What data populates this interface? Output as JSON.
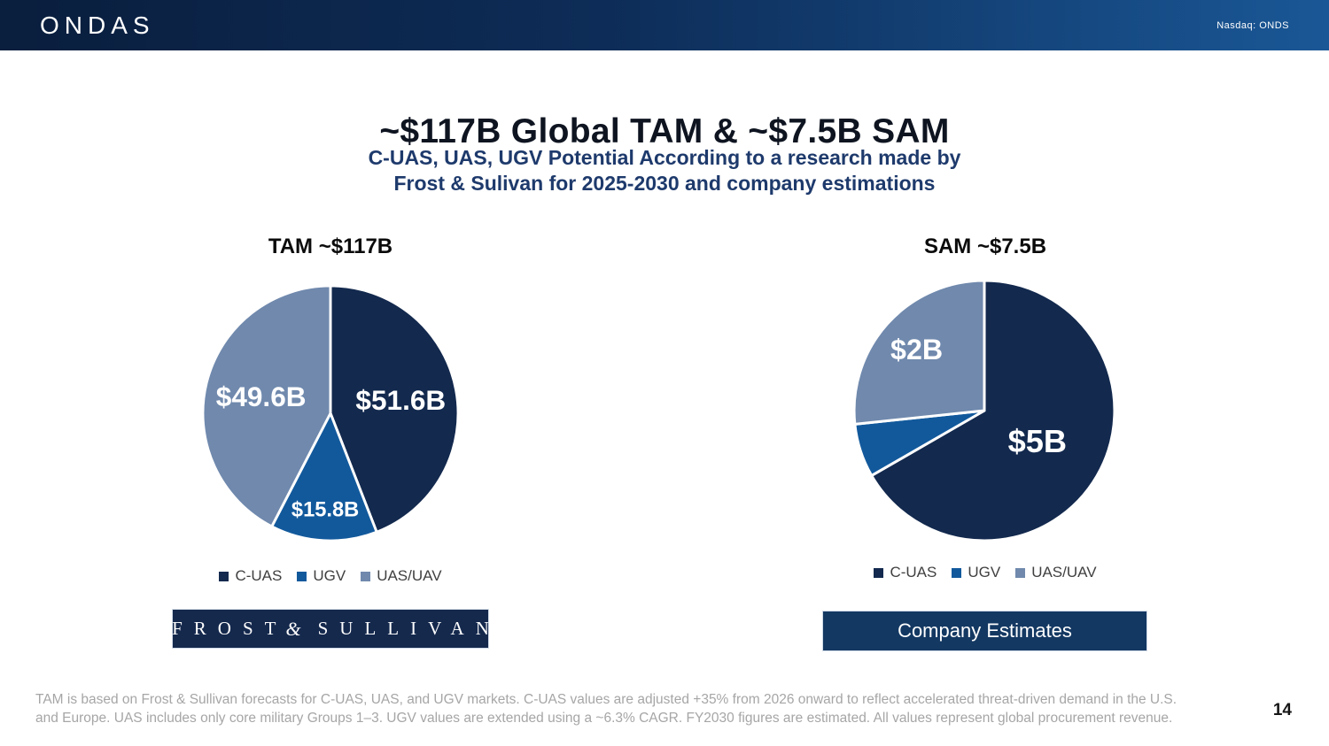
{
  "header": {
    "logo_text": "ONDAS",
    "ticker": "Nasdaq: ONDS"
  },
  "title": "~$117B Global TAM & ~$7.5B SAM",
  "subtitle": {
    "line1": "C-UAS, UAS, UGV Potential According to a research made by",
    "line2": "Frost & Sulivan for 2025-2030 and company estimations"
  },
  "chart_data": [
    {
      "type": "pie",
      "title": "TAM ~$117B",
      "unit": "USD billions",
      "categories": [
        "C-UAS",
        "UGV",
        "UAS/UAV"
      ],
      "values": [
        51.6,
        15.8,
        49.6
      ],
      "total": 117,
      "slice_labels": [
        "$51.6B",
        "$15.8B",
        "$49.6B"
      ],
      "colors": [
        "#13294e",
        "#12599c",
        "#7089ad"
      ],
      "start_angle_deg": 0,
      "clockwise": true,
      "legend_position": "bottom",
      "label_radius_frac": [
        0.56,
        0.76,
        0.56
      ],
      "label_font_px": [
        32,
        24,
        32
      ]
    },
    {
      "type": "pie",
      "title": "SAM ~$7.5B",
      "unit": "USD billions",
      "categories": [
        "C-UAS",
        "UGV",
        "UAS/UAV"
      ],
      "values": [
        5,
        0.5,
        2
      ],
      "total": 7.5,
      "slice_labels": [
        "$5B",
        "",
        "$2B"
      ],
      "colors": [
        "#13294e",
        "#12599c",
        "#7089ad"
      ],
      "start_angle_deg": 0,
      "clockwise": true,
      "legend_position": "bottom",
      "label_radius_frac": [
        0.47,
        0,
        0.7
      ],
      "label_font_px": [
        36,
        0,
        32
      ]
    }
  ],
  "sources": {
    "frost": {
      "word1": "FROST",
      "amp": "&",
      "word2": "SULLIVAN"
    },
    "company": "Company Estimates"
  },
  "footnote": {
    "line1": "TAM is based on Frost & Sullivan forecasts for C-UAS, UAS, and UGV markets. C-UAS values are adjusted +35% from 2026 onward to reflect accelerated threat-driven demand in the U.S.",
    "line2": "and Europe. UAS includes only core military Groups 1–3. UGV values are extended using a ~6.3% CAGR. FY2030 figures are estimated. All values represent global procurement revenue."
  },
  "page_number": "14",
  "colors": {
    "header_gradient_start": "#0a1e3d",
    "header_gradient_end": "#1a5796",
    "navy": "#13294e",
    "mid_blue": "#12599c",
    "gray_blue": "#7089ad",
    "subtitle_blue": "#1e3a6c",
    "footnote_gray": "#a6a6a6"
  }
}
